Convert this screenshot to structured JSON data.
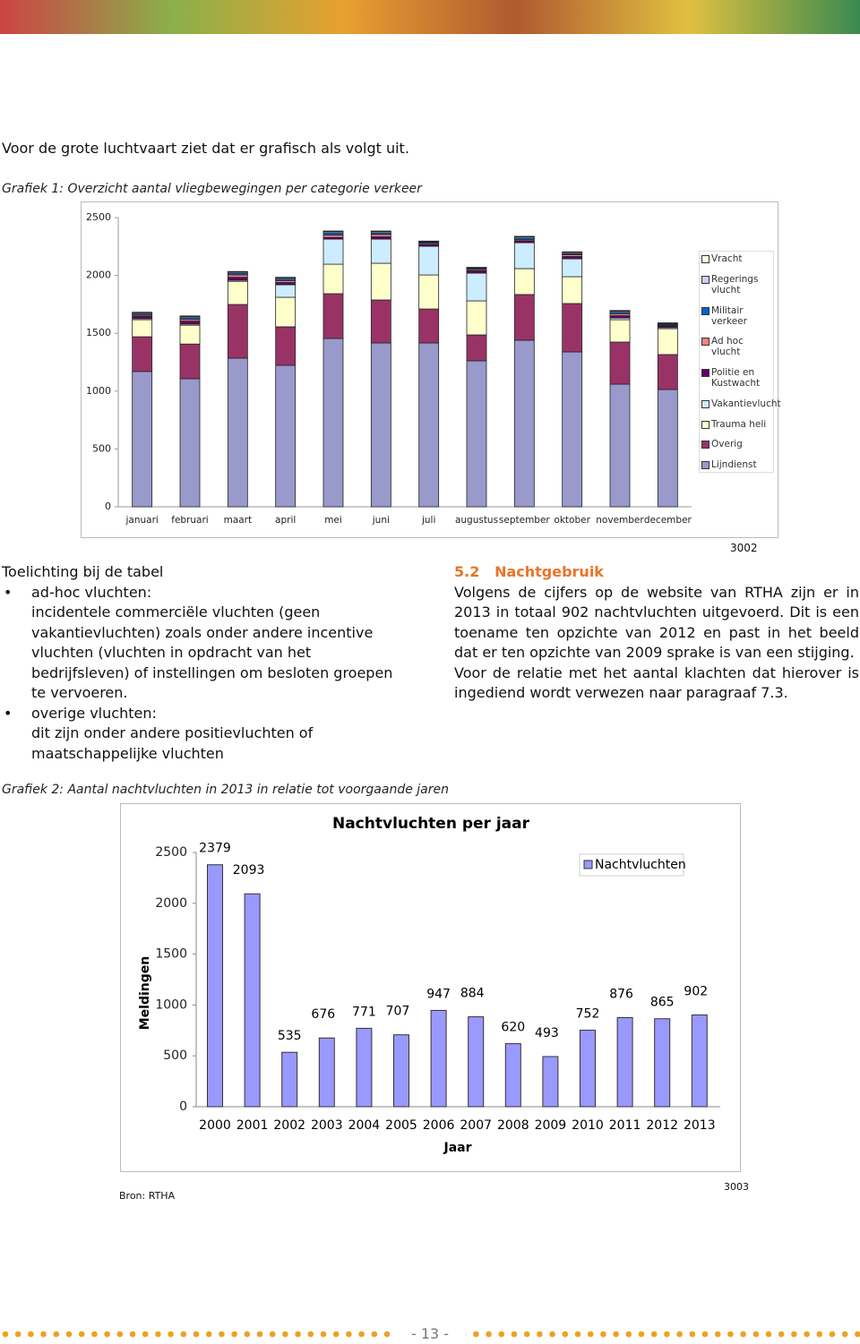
{
  "intro": "Voor de grote luchtvaart ziet dat er grafisch als volgt uit.",
  "caption_1": "Grafiek 1: Overzicht aantal vliegbewegingen per categorie verkeer",
  "figure_number_1": "3002",
  "notes": {
    "title": "Toelichting bij de tabel",
    "items": [
      {
        "term": "ad-hoc vluchten:",
        "text": "incidentele commerciële vluchten (geen vakantievluchten) zoals onder andere incentive vluchten (vluchten in opdracht van het bedrijfsleven) of instellingen om besloten groepen te vervoeren."
      },
      {
        "term": "overige vluchten:",
        "text": "dit zijn onder andere positievluchten of maatschappelijke vluchten"
      }
    ]
  },
  "section": {
    "number": "5.2",
    "title": "Nachtgebruik",
    "paragraphs": [
      "Volgens de cijfers op de website van RTHA zijn er in 2013 in totaal 902 nachtvluchten uitgevoerd. Dit is een toename ten opzichte van 2012 en past in het beeld dat er ten opzichte van 2009 sprake is van een stijging.",
      "Voor de relatie met het aantal klachten dat hierover is ingediend wordt verwezen naar paragraaf 7.3."
    ]
  },
  "caption_2": "Grafiek 2: Aantal nachtvluchten in 2013 in relatie tot voorgaande jaren",
  "source": "Bron: RTHA",
  "figure_number_2": "3003",
  "page_number": "- 13 -",
  "chart_data": [
    {
      "type": "stacked_bar",
      "categories": [
        "januari",
        "februari",
        "maart",
        "april",
        "mei",
        "juni",
        "juli",
        "augustus",
        "september",
        "oktober",
        "november",
        "december"
      ],
      "series": [
        {
          "name": "Lijndienst",
          "color": "#9999cc",
          "values": [
            1170,
            1107,
            1285,
            1223,
            1455,
            1416,
            1416,
            1262,
            1440,
            1339,
            1060,
            1014
          ]
        },
        {
          "name": "Overig",
          "color": "#993366",
          "values": [
            300,
            300,
            464,
            333,
            387,
            372,
            294,
            224,
            395,
            418,
            364,
            302
          ]
        },
        {
          "name": "Trauma heli",
          "color": "#ffffcc",
          "values": [
            147,
            163,
            200,
            255,
            255,
            317,
            294,
            294,
            224,
            232,
            193,
            224
          ]
        },
        {
          "name": "Vakantievlucht",
          "color": "#ccecff",
          "values": [
            10,
            10,
            10,
            108,
            217,
            209,
            248,
            240,
            224,
            155,
            15,
            10
          ]
        },
        {
          "name": "Politie en Kustwacht",
          "color": "#660066",
          "values": [
            20,
            25,
            25,
            20,
            15,
            20,
            15,
            20,
            15,
            20,
            20,
            15
          ]
        },
        {
          "name": "Ad hoc vlucht",
          "color": "#ff8080",
          "values": [
            10,
            15,
            20,
            15,
            20,
            20,
            10,
            10,
            10,
            15,
            15,
            5
          ]
        },
        {
          "name": "Militair verkeer",
          "color": "#0066cc",
          "values": [
            10,
            15,
            15,
            15,
            20,
            15,
            10,
            10,
            15,
            10,
            15,
            10
          ]
        },
        {
          "name": "Regerings vlucht",
          "color": "#ccccff",
          "values": [
            10,
            10,
            10,
            10,
            10,
            10,
            5,
            5,
            10,
            10,
            10,
            5
          ]
        },
        {
          "name": "Vracht",
          "color": "#ffffe0",
          "values": [
            5,
            5,
            5,
            5,
            5,
            5,
            5,
            5,
            5,
            5,
            5,
            5
          ]
        }
      ],
      "ylim": [
        0,
        2500
      ],
      "yticks": [
        0,
        500,
        1000,
        1500,
        2000,
        2500
      ],
      "grid": false,
      "legend": "right"
    },
    {
      "type": "bar",
      "title": "Nachtvluchten per jaar",
      "x_label": "Jaar",
      "y_label": "Meldingen",
      "categories": [
        "2000",
        "2001",
        "2002",
        "2003",
        "2004",
        "2005",
        "2006",
        "2007",
        "2008",
        "2009",
        "2010",
        "2011",
        "2012",
        "2013"
      ],
      "series": [
        {
          "name": "Nachtvluchten",
          "color": "#9999ff",
          "values": [
            2379,
            2093,
            535,
            676,
            771,
            707,
            947,
            884,
            620,
            493,
            752,
            876,
            865,
            902
          ]
        }
      ],
      "ylim": [
        0,
        2500
      ],
      "yticks": [
        0,
        500,
        1000,
        1500,
        2000,
        2500
      ],
      "grid": false,
      "legend": "top-right",
      "data_labels": true
    }
  ]
}
